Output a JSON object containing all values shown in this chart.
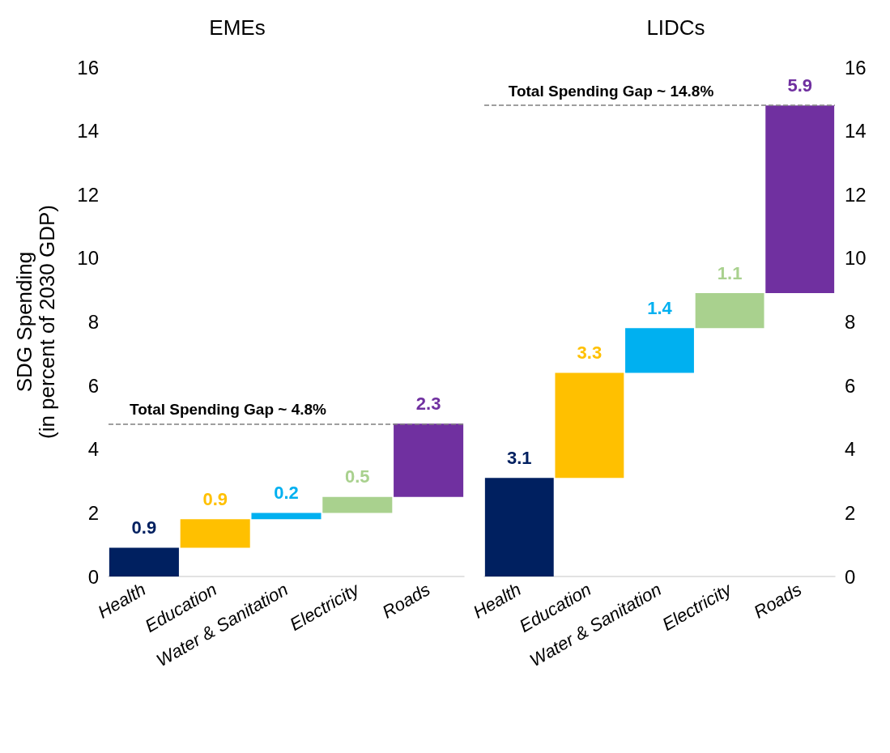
{
  "chart_data": [
    {
      "type": "bar",
      "title": "EMEs",
      "ylabel": "SDG Spending\n(in percent of 2030 GDP)",
      "categories": [
        "Health",
        "Education",
        "Water & Sanitation",
        "Electricity",
        "Roads"
      ],
      "values": [
        0.9,
        0.9,
        0.2,
        0.5,
        2.3
      ],
      "base": [
        0,
        0.9,
        1.8,
        2.0,
        2.5
      ],
      "colors": [
        "#002060",
        "#ffc000",
        "#00b0f0",
        "#a9d18e",
        "#7030a0"
      ],
      "data_labels": true,
      "ylim": [
        0,
        16
      ],
      "yticks": [
        0,
        2,
        4,
        6,
        8,
        10,
        12,
        14,
        16
      ],
      "ref_lines": [
        {
          "axis": "y",
          "value": 4.8,
          "label": "Total Spending Gap ~ 4.8%",
          "color": "#808080",
          "line_style": "dashed"
        }
      ]
    },
    {
      "type": "bar",
      "title": "LIDCs",
      "categories": [
        "Health",
        "Education",
        "Water & Sanitation",
        "Electricity",
        "Roads"
      ],
      "values": [
        3.1,
        3.3,
        1.4,
        1.1,
        5.9
      ],
      "base": [
        0,
        3.1,
        6.4,
        7.8,
        8.9
      ],
      "colors": [
        "#002060",
        "#ffc000",
        "#00b0f0",
        "#a9d18e",
        "#7030a0"
      ],
      "data_labels": true,
      "ylim": [
        0,
        16
      ],
      "yticks": [
        0,
        2,
        4,
        6,
        8,
        10,
        12,
        14,
        16
      ],
      "ref_lines": [
        {
          "axis": "y",
          "value": 14.8,
          "label": "Total Spending Gap ~ 14.8%",
          "color": "#808080",
          "line_style": "dashed"
        }
      ]
    }
  ]
}
